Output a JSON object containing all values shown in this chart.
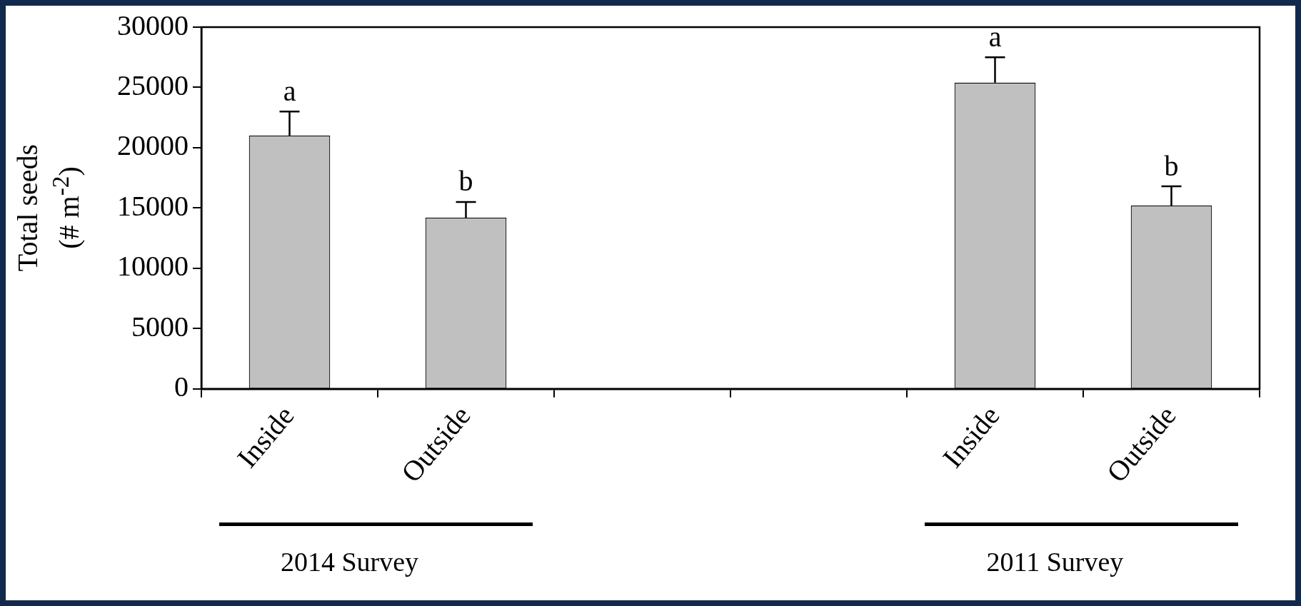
{
  "chart_data": {
    "type": "bar",
    "ylabel": "Total seeds\n(# m$^{-2}$)",
    "categories": [
      "Inside",
      "Outside",
      null,
      null,
      "Inside",
      "Outside"
    ],
    "values": [
      21000,
      14200,
      null,
      null,
      25400,
      15200
    ],
    "errors": [
      [
        21000,
        23000
      ],
      [
        14200,
        15500
      ],
      null,
      null,
      [
        25400,
        27500
      ],
      [
        15200,
        16800
      ]
    ],
    "color": "#c0c0c0",
    "ylim": [
      0,
      30000
    ],
    "yticks": [
      0,
      5000,
      10000,
      15000,
      20000,
      25000,
      30000
    ],
    "grid": false,
    "legend": false,
    "annotations": [
      "a",
      "b",
      "a",
      "b",
      "2014 Survey",
      "2011 Survey"
    ]
  }
}
